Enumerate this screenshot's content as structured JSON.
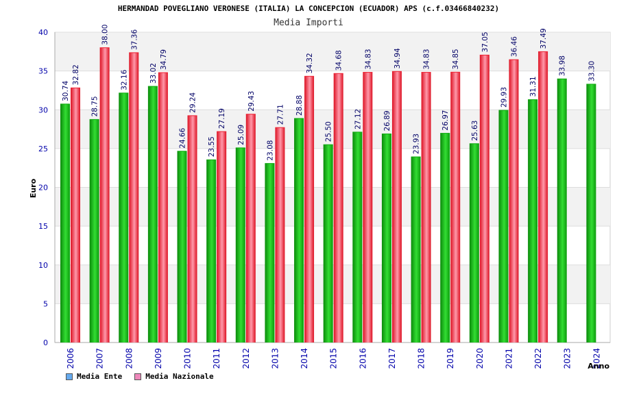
{
  "chart_data": {
    "type": "bar",
    "title": "HERMANDAD POVEGLIANO VERONESE (ITALIA) LA CONCEPCION (ECUADOR) APS (c.f.03466840232)",
    "subtitle": "Media Importi",
    "xlabel": "Anno",
    "ylabel": "Euro",
    "ylim": [
      0,
      40
    ],
    "yticks": [
      0,
      5,
      10,
      15,
      20,
      25,
      30,
      35,
      40
    ],
    "categories": [
      "2006",
      "2007",
      "2008",
      "2009",
      "2010",
      "2011",
      "2012",
      "2013",
      "2014",
      "2015",
      "2016",
      "2017",
      "2018",
      "2019",
      "2020",
      "2021",
      "2022",
      "2023",
      "2024"
    ],
    "series": [
      {
        "name": "Media Ente",
        "color": "#11aa11",
        "legend_color": "#66aaee",
        "values": [
          30.74,
          28.75,
          32.16,
          33.02,
          24.66,
          23.55,
          25.09,
          23.08,
          28.88,
          25.5,
          27.12,
          26.89,
          23.93,
          26.97,
          25.63,
          29.93,
          31.31,
          33.98,
          33.3
        ],
        "labels": [
          "30.74",
          "28.75",
          "32.16",
          "33.02",
          "24.66",
          "23.55",
          "25.09",
          "23.08",
          "28.88",
          "25.50",
          "27.12",
          "26.89",
          "23.93",
          "26.97",
          "25.63",
          "29.93",
          "31.31",
          "33.98",
          "33.30"
        ]
      },
      {
        "name": "Media Nazionale",
        "color": "#ee2233",
        "legend_color": "#ee88bb",
        "values": [
          32.82,
          38.0,
          37.36,
          34.79,
          29.24,
          27.19,
          29.43,
          27.71,
          34.32,
          34.68,
          34.83,
          34.94,
          34.83,
          34.85,
          37.05,
          36.46,
          37.49,
          null,
          null
        ],
        "labels": [
          "32.82",
          "38.00",
          "37.36",
          "34.79",
          "29.24",
          "27.19",
          "29.43",
          "27.71",
          "34.32",
          "34.68",
          "34.83",
          "34.94",
          "34.83",
          "34.85",
          "37.05",
          "36.46",
          "37.49",
          null,
          null
        ]
      }
    ],
    "grid": true,
    "legend_position": "bottom-left"
  }
}
